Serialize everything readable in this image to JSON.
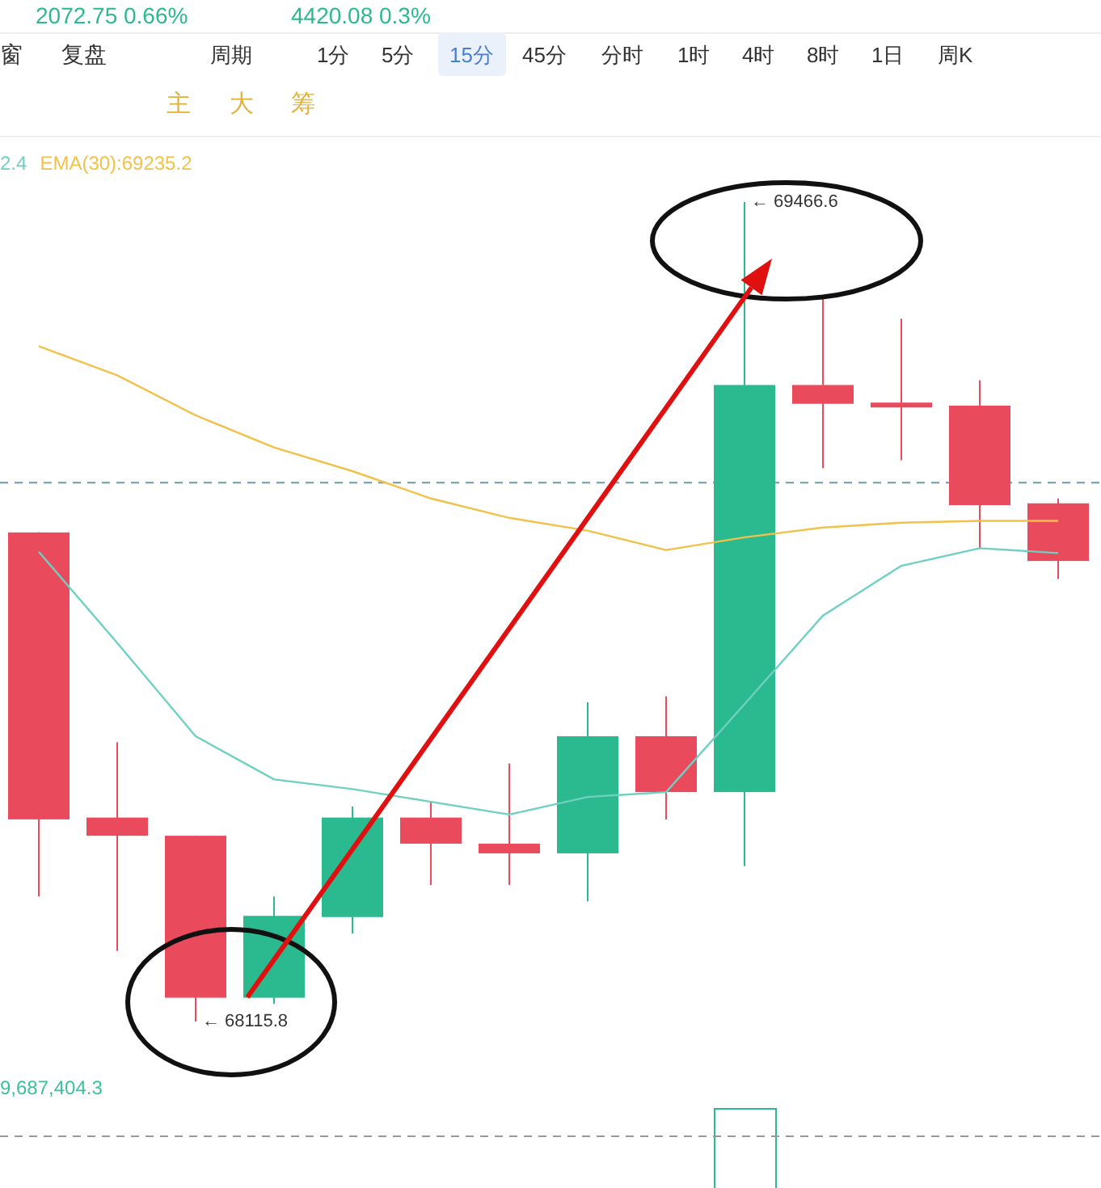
{
  "chart_data": [
    {
      "type": "other",
      "annotations": [
        "2072.75 0.66%",
        "4420.08 0.3%",
        "窗",
        "复盘",
        "周期",
        "1分",
        "5分",
        "15分",
        "45分",
        "分时",
        "1时",
        "4时",
        "8时",
        "1日",
        "周K",
        "主",
        "大",
        "筹"
      ]
    },
    {
      "type": "candlestick",
      "categories": [
        null,
        null,
        null,
        null,
        null,
        null,
        null,
        null,
        null,
        null,
        null,
        null,
        null,
        null
      ],
      "ohlc": [
        [
          68922,
          68922,
          68322,
          68449
        ],
        [
          68452,
          68576,
          68232,
          68422
        ],
        [
          68422,
          68422,
          68115.8,
          68155
        ],
        [
          68155,
          68322,
          68145,
          68290
        ],
        [
          68288,
          68470,
          68261,
          68452
        ],
        [
          68452,
          68478,
          68341,
          68409
        ],
        [
          68409,
          68541,
          68341,
          68393
        ],
        [
          68393,
          68642,
          68314,
          68586
        ],
        [
          68586,
          68652,
          68449,
          68494
        ],
        [
          68494,
          69466.6,
          68372,
          69165
        ],
        [
          69165,
          69308,
          69028,
          69134
        ],
        [
          69136,
          69274,
          69041,
          69128
        ],
        [
          69131,
          69173,
          68896,
          68967
        ],
        [
          68970,
          68978,
          68845,
          68875
        ]
      ],
      "colors": [
        "#e94a5c",
        "#e94a5c",
        "#e94a5c",
        "#2bb98f",
        "#2bb98f",
        "#e94a5c",
        "#e94a5c",
        "#2bb98f",
        "#e94a5c",
        "#2bb98f",
        "#e94a5c",
        "#e94a5c",
        "#e94a5c",
        "#e94a5c"
      ],
      "series": [
        {
          "name": "2.4",
          "type": "line",
          "color": "#6fd0c2",
          "values": [
            68890,
            68740,
            68586,
            68515,
            68499,
            68478,
            68457,
            68486,
            68494,
            68639,
            68785,
            68867,
            68896,
            68888
          ]
        },
        {
          "name": "EMA(30):69235.2",
          "type": "line",
          "color": "#f0c24a",
          "values": [
            69229,
            69181,
            69115,
            69062,
            69023,
            68978,
            68946,
            68925,
            68893,
            68914,
            68930,
            68938,
            68941,
            68941
          ]
        }
      ],
      "legend": "top left",
      "ref_lines": [
        {
          "axis": "y",
          "value": 69004,
          "color": "#6a9aa5",
          "line_style": "dashed"
        }
      ],
      "annotations": [
        "← 68115.8",
        "← 69466.6"
      ]
    },
    {
      "type": "other",
      "annotations": [
        "9,687,404.3"
      ]
    }
  ]
}
